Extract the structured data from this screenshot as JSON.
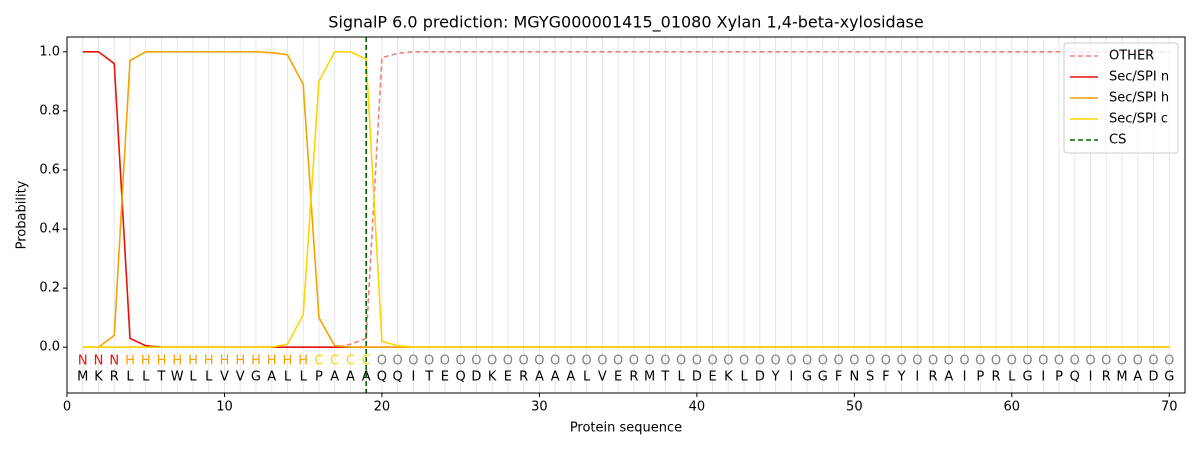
{
  "chart_data": {
    "type": "line",
    "title": "SignalP 6.0 prediction: MGYG000001415_01080 Xylan 1,4-beta-xylosidase",
    "x_label": "Protein sequence",
    "y_label": "Probability",
    "x": [
      1,
      2,
      3,
      4,
      5,
      6,
      7,
      8,
      9,
      10,
      11,
      12,
      13,
      14,
      15,
      16,
      17,
      18,
      19,
      20,
      21,
      22,
      23,
      24,
      25,
      26,
      27,
      28,
      29,
      30,
      31,
      32,
      33,
      34,
      35,
      36,
      37,
      38,
      39,
      40,
      41,
      42,
      43,
      44,
      45,
      46,
      47,
      48,
      49,
      50,
      51,
      52,
      53,
      54,
      55,
      56,
      57,
      58,
      59,
      60,
      61,
      62,
      63,
      64,
      65,
      66,
      67,
      68,
      69,
      70
    ],
    "residues": [
      "M",
      "K",
      "R",
      "L",
      "L",
      "T",
      "W",
      "L",
      "L",
      "V",
      "V",
      "G",
      "A",
      "L",
      "L",
      "P",
      "A",
      "A",
      "A",
      "Q",
      "Q",
      "I",
      "T",
      "E",
      "Q",
      "D",
      "K",
      "E",
      "R",
      "A",
      "A",
      "A",
      "L",
      "V",
      "E",
      "R",
      "M",
      "T",
      "L",
      "D",
      "E",
      "K",
      "L",
      "D",
      "Y",
      "I",
      "G",
      "G",
      "F",
      "N",
      "S",
      "F",
      "Y",
      "I",
      "R",
      "A",
      "I",
      "P",
      "R",
      "L",
      "G",
      "I",
      "P",
      "Q",
      "I",
      "R",
      "M",
      "A",
      "D",
      "G"
    ],
    "annotations": [
      "N",
      "N",
      "N",
      "H",
      "H",
      "H",
      "H",
      "H",
      "H",
      "H",
      "H",
      "H",
      "H",
      "H",
      "H",
      "C",
      "C",
      "C",
      "C",
      "O",
      "O",
      "O",
      "O",
      "O",
      "O",
      "O",
      "O",
      "O",
      "O",
      "O",
      "O",
      "O",
      "O",
      "O",
      "O",
      "O",
      "O",
      "O",
      "O",
      "O",
      "O",
      "O",
      "O",
      "O",
      "O",
      "O",
      "O",
      "O",
      "O",
      "O",
      "O",
      "O",
      "O",
      "O",
      "O",
      "O",
      "O",
      "O",
      "O",
      "O",
      "O",
      "O",
      "O",
      "O",
      "O",
      "O",
      "O",
      "O",
      "O",
      "O"
    ],
    "annotation_colors": {
      "N": "#e8120b",
      "H": "#f5a300",
      "C": "#ffd400",
      "O": "#808080"
    },
    "series": [
      {
        "name": "OTHER",
        "color": "#f08080",
        "dash": true,
        "values": [
          0,
          0,
          0,
          0,
          0,
          0,
          0,
          0,
          0,
          0,
          0,
          0,
          0,
          0,
          0,
          0,
          0,
          0.01,
          0.03,
          0.98,
          0.995,
          1,
          1,
          1,
          1,
          1,
          1,
          1,
          1,
          1,
          1,
          1,
          1,
          1,
          1,
          1,
          1,
          1,
          1,
          1,
          1,
          1,
          1,
          1,
          1,
          1,
          1,
          1,
          1,
          1,
          1,
          1,
          1,
          1,
          1,
          1,
          1,
          1,
          1,
          1,
          1,
          1,
          1,
          1,
          1,
          1,
          1,
          1,
          1,
          1
        ]
      },
      {
        "name": "Sec/SPI n",
        "color": "#e8120b",
        "values": [
          1,
          1,
          0.96,
          0.03,
          0.005,
          0,
          0,
          0,
          0,
          0,
          0,
          0,
          0,
          0,
          0,
          0,
          0,
          0,
          0,
          0,
          0,
          0,
          0,
          0,
          0,
          0,
          0,
          0,
          0,
          0,
          0,
          0,
          0,
          0,
          0,
          0,
          0,
          0,
          0,
          0,
          0,
          0,
          0,
          0,
          0,
          0,
          0,
          0,
          0,
          0,
          0,
          0,
          0,
          0,
          0,
          0,
          0,
          0,
          0,
          0,
          0,
          0,
          0,
          0,
          0,
          0,
          0,
          0,
          0,
          0
        ]
      },
      {
        "name": "Sec/SPI h",
        "color": "#f5a300",
        "values": [
          0,
          0,
          0.04,
          0.97,
          1,
          1,
          1,
          1,
          1,
          1,
          1,
          1,
          0.997,
          0.99,
          0.89,
          0.1,
          0.005,
          0,
          0,
          0,
          0,
          0,
          0,
          0,
          0,
          0,
          0,
          0,
          0,
          0,
          0,
          0,
          0,
          0,
          0,
          0,
          0,
          0,
          0,
          0,
          0,
          0,
          0,
          0,
          0,
          0,
          0,
          0,
          0,
          0,
          0,
          0,
          0,
          0,
          0,
          0,
          0,
          0,
          0,
          0,
          0,
          0,
          0,
          0,
          0,
          0,
          0,
          0,
          0,
          0
        ]
      },
      {
        "name": "Sec/SPI c",
        "color": "#ffd400",
        "values": [
          0,
          0,
          0,
          0,
          0,
          0,
          0,
          0,
          0,
          0,
          0,
          0,
          0,
          0.01,
          0.11,
          0.9,
          1,
          1,
          0.975,
          0.02,
          0.005,
          0,
          0,
          0,
          0,
          0,
          0,
          0,
          0,
          0,
          0,
          0,
          0,
          0,
          0,
          0,
          0,
          0,
          0,
          0,
          0,
          0,
          0,
          0,
          0,
          0,
          0,
          0,
          0,
          0,
          0,
          0,
          0,
          0,
          0,
          0,
          0,
          0,
          0,
          0,
          0,
          0,
          0,
          0,
          0,
          0,
          0,
          0,
          0,
          0
        ]
      }
    ],
    "cs": {
      "name": "CS",
      "color": "#006400",
      "x": 19
    },
    "xlim": [
      0,
      71
    ],
    "ylim": [
      -0.155,
      1.05
    ],
    "xticks": [
      0,
      10,
      20,
      30,
      40,
      50,
      60,
      70
    ],
    "yticks": [
      {
        "value": 0,
        "label": "0.0"
      },
      {
        "value": 0.2,
        "label": "0.2"
      },
      {
        "value": 0.4,
        "label": "0.4"
      },
      {
        "value": 0.6,
        "label": "0.6"
      },
      {
        "value": 0.8,
        "label": "0.8"
      },
      {
        "value": 1,
        "label": "1.0"
      }
    ],
    "legend": "upper right",
    "grid": true
  }
}
